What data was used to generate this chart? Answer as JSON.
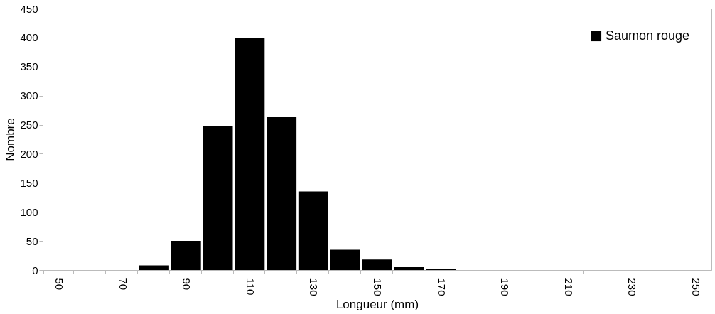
{
  "chart_data": {
    "type": "bar",
    "xlabel": "Longueur (mm)",
    "ylabel": "Nombre",
    "categories": [
      "50",
      null,
      "70",
      null,
      "90",
      null,
      "110",
      null,
      "130",
      null,
      "150",
      null,
      "170",
      null,
      "190",
      null,
      "210",
      null,
      "230",
      null,
      "250"
    ],
    "series": [
      {
        "name": "Saumon rouge",
        "color": "#000000",
        "values": [
          0,
          0,
          0,
          8,
          50,
          248,
          400,
          263,
          135,
          35,
          18,
          5,
          2,
          0,
          0,
          0,
          0,
          0,
          0,
          0,
          0
        ]
      }
    ],
    "ylim": [
      0,
      450
    ],
    "yticks": [
      0,
      50,
      100,
      150,
      200,
      250,
      300,
      350,
      400,
      450
    ],
    "grid": false,
    "legend": "top right"
  }
}
